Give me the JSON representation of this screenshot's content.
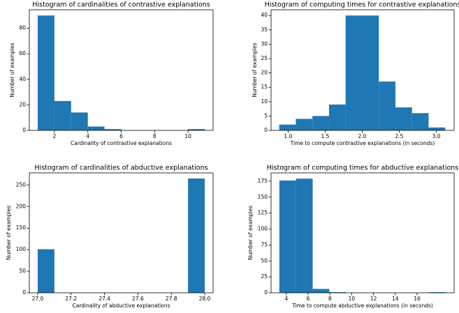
{
  "chart_data": [
    {
      "type": "histogram",
      "title": "Histogram of cardinalities of contrastive explanations",
      "xlabel": "Cardinality of contrastive explanations",
      "ylabel": "Number of examples",
      "bins": [
        1,
        2,
        3,
        4,
        5,
        6,
        7,
        8,
        9,
        10,
        11
      ],
      "values": [
        90,
        23,
        14,
        3,
        1,
        0,
        0,
        0,
        0,
        1
      ],
      "color": "#1f77b4",
      "xlim": [
        0.5,
        11.5
      ],
      "xticks": [
        2,
        4,
        6,
        8,
        10
      ],
      "ylim": [
        0,
        94.5
      ],
      "yticks": [
        0,
        20,
        40,
        60,
        80
      ]
    },
    {
      "type": "histogram",
      "title": "Histogram of computing times for contrastive explanations",
      "xlabel": "Time to compute contrastive explanations (in seconds)",
      "ylabel": "Number of examples",
      "bins": [
        0.88,
        1.104,
        1.328,
        1.552,
        1.776,
        2.0,
        2.224,
        2.448,
        2.672,
        2.896,
        3.12
      ],
      "values": [
        2,
        4,
        5,
        9,
        40,
        40,
        17,
        8,
        6,
        1
      ],
      "color": "#1f77b4",
      "xlim": [
        0.77,
        3.24
      ],
      "xticks": [
        {
          "value": 1,
          "label": "1.0"
        },
        1.5,
        {
          "value": 2,
          "label": "2.0"
        },
        2.5,
        {
          "value": 3,
          "label": "3.0"
        }
      ],
      "ylim": [
        0,
        42
      ],
      "yticks": [
        0,
        5,
        10,
        15,
        20,
        25,
        30,
        35,
        40
      ]
    },
    {
      "type": "histogram",
      "title": "Histogram of cardinalities of abductive explanations",
      "xlabel": "Cardinality of abductive explanations",
      "ylabel": "Number of examples",
      "bins": [
        27,
        27.1,
        27.2,
        27.3,
        27.4,
        27.5,
        27.6,
        27.7,
        27.8,
        27.9,
        28
      ],
      "values": [
        101,
        0,
        0,
        0,
        0,
        0,
        0,
        0,
        0,
        265
      ],
      "color": "#1f77b4",
      "xlim": [
        26.95,
        28.05
      ],
      "xticks": [
        {
          "value": 27,
          "label": "27.0"
        },
        27.2,
        27.4,
        27.6,
        27.8,
        {
          "value": 28,
          "label": "28.0"
        }
      ],
      "ylim": [
        0,
        278
      ],
      "yticks": [
        0,
        50,
        100,
        150,
        200,
        250
      ]
    },
    {
      "type": "histogram",
      "title": "Histogram of computing times for abductive explanations",
      "xlabel": "Time to compute abductive explanations (in seconds)",
      "ylabel": "Number of examples",
      "bins": [
        3.36,
        4.89,
        6.42,
        7.95,
        9.48,
        11.01,
        12.54,
        14.07,
        15.6,
        17.13,
        18.66
      ],
      "values": [
        176,
        179,
        6,
        1,
        0,
        0,
        0,
        0,
        0,
        1
      ],
      "color": "#1f77b4",
      "xlim": [
        2.6,
        19.4
      ],
      "xticks": [
        4,
        6,
        8,
        10,
        12,
        14,
        16
      ],
      "ylim": [
        0,
        188
      ],
      "yticks": [
        0,
        25,
        50,
        75,
        100,
        125,
        150,
        175
      ]
    }
  ]
}
